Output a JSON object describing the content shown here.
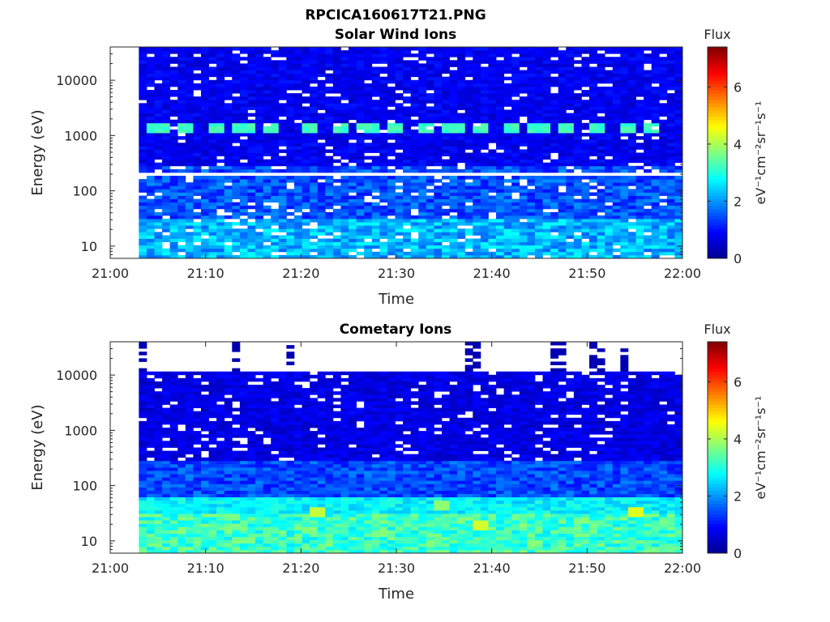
{
  "figure": {
    "title": "RPCICA160617T21.PNG"
  },
  "colormap": {
    "name": "jet",
    "stops": [
      "#00008f",
      "#0000ff",
      "#0080ff",
      "#00ffff",
      "#80ff80",
      "#ffff00",
      "#ff8000",
      "#ff0000",
      "#800000"
    ]
  },
  "chart_data": [
    {
      "type": "heatmap",
      "title": "Solar Wind Ions",
      "xlabel": "Time",
      "ylabel": "Energy (eV)",
      "x_ticks": [
        "21:00",
        "21:10",
        "21:20",
        "21:30",
        "21:40",
        "21:50",
        "22:00"
      ],
      "x_range": [
        "21:00",
        "22:00"
      ],
      "y_ticks": [
        "10",
        "100",
        "1000",
        "10000"
      ],
      "y_scale": "log",
      "y_range": [
        6,
        40000
      ],
      "data_start": "21:03",
      "colorbar": {
        "label": "Flux",
        "unit": "eV⁻¹cm⁻²sr⁻¹s⁻¹",
        "range": [
          0,
          7.4
        ],
        "ticks": [
          "0",
          "2",
          "4",
          "6"
        ]
      },
      "features": {
        "background_level": 0.5,
        "low_energy_level": 2.0,
        "low_energy_cutoff_eV": 30,
        "proton_peak_eV": 1400,
        "proton_peak_level": 3.0,
        "gap_line_eV": 200,
        "peak_times": [
          "21:05",
          "21:08",
          "21:11",
          "21:14",
          "21:17",
          "21:21",
          "21:24",
          "21:27",
          "21:30",
          "21:33",
          "21:36",
          "21:39",
          "21:42",
          "21:45",
          "21:48",
          "21:51",
          "21:54",
          "21:57"
        ]
      },
      "grid": false,
      "legend": "none"
    },
    {
      "type": "heatmap",
      "title": "Cometary Ions",
      "xlabel": "Time",
      "ylabel": "Energy (eV)",
      "x_ticks": [
        "21:00",
        "21:10",
        "21:20",
        "21:30",
        "21:40",
        "21:50",
        "22:00"
      ],
      "x_range": [
        "21:00",
        "22:00"
      ],
      "y_ticks": [
        "10",
        "100",
        "1000",
        "10000"
      ],
      "y_scale": "log",
      "y_range": [
        6,
        40000
      ],
      "data_start": "21:03",
      "colorbar": {
        "label": "Flux",
        "unit": "eV⁻¹cm⁻²sr⁻¹s⁻¹",
        "range": [
          0,
          7.4
        ],
        "ticks": [
          "0",
          "2",
          "4",
          "6"
        ]
      },
      "features": {
        "background_level": 0.4,
        "upper_cutoff_eV": 11000,
        "low_energy_peak_eV": 15,
        "low_energy_peak_level": 3.2,
        "bright_spots": [
          {
            "time": "21:22",
            "eV": 35,
            "level": 4.2
          },
          {
            "time": "21:39",
            "eV": 20,
            "level": 4.3
          },
          {
            "time": "21:55",
            "eV": 35,
            "level": 4.4
          },
          {
            "time": "21:35",
            "eV": 45,
            "level": 3.8
          }
        ],
        "high_energy_spikes": [
          "21:03",
          "21:13",
          "21:19",
          "21:38",
          "21:47",
          "21:51",
          "21:54"
        ]
      },
      "grid": false,
      "legend": "none"
    }
  ]
}
